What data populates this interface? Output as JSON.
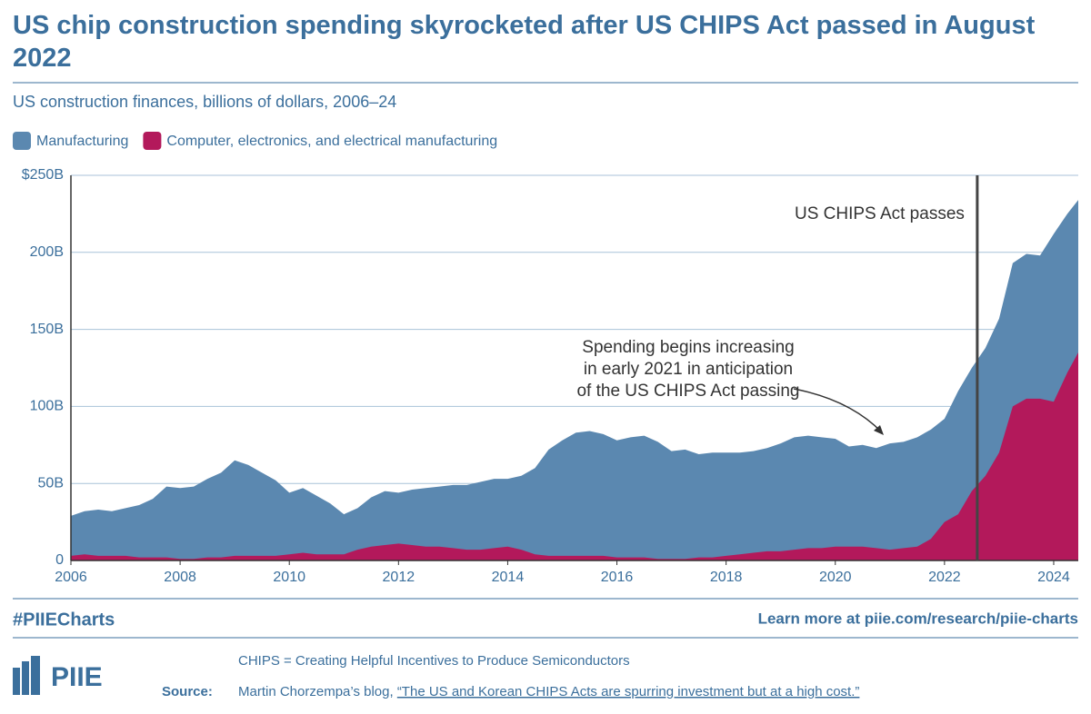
{
  "chart_data": {
    "type": "area",
    "title": "US chip construction spending skyrocketed after US CHIPS Act passed in August 2022",
    "subtitle": "US construction finances, billions of dollars, 2006–24",
    "x": [
      2006,
      2006.25,
      2006.5,
      2006.75,
      2007,
      2007.25,
      2007.5,
      2007.75,
      2008,
      2008.25,
      2008.5,
      2008.75,
      2009,
      2009.25,
      2009.5,
      2009.75,
      2010,
      2010.25,
      2010.5,
      2010.75,
      2011,
      2011.25,
      2011.5,
      2011.75,
      2012,
      2012.25,
      2012.5,
      2012.75,
      2013,
      2013.25,
      2013.5,
      2013.75,
      2014,
      2014.25,
      2014.5,
      2014.75,
      2015,
      2015.25,
      2015.5,
      2015.75,
      2016,
      2016.25,
      2016.5,
      2016.75,
      2017,
      2017.25,
      2017.5,
      2017.75,
      2018,
      2018.25,
      2018.5,
      2018.75,
      2019,
      2019.25,
      2019.5,
      2019.75,
      2020,
      2020.25,
      2020.5,
      2020.75,
      2021,
      2021.25,
      2021.5,
      2021.75,
      2022,
      2022.25,
      2022.5,
      2022.75,
      2023,
      2023.25,
      2023.5,
      2023.75,
      2024,
      2024.25,
      2024.45
    ],
    "series": [
      {
        "name": "Manufacturing",
        "color": "#5b88b0",
        "values": [
          29,
          32,
          33,
          32,
          34,
          36,
          40,
          48,
          47,
          48,
          53,
          57,
          65,
          62,
          57,
          52,
          44,
          47,
          42,
          37,
          30,
          34,
          41,
          45,
          44,
          46,
          47,
          48,
          49,
          49,
          51,
          53,
          53,
          55,
          60,
          72,
          78,
          83,
          84,
          82,
          78,
          80,
          81,
          77,
          71,
          72,
          69,
          70,
          70,
          70,
          71,
          73,
          76,
          80,
          81,
          80,
          79,
          74,
          75,
          73,
          76,
          77,
          80,
          85,
          92,
          110,
          125,
          138,
          157,
          193,
          199,
          198,
          212,
          225,
          234
        ]
      },
      {
        "name": "Computer, electronics, and electrical manufacturing",
        "color": "#b3195b",
        "values": [
          3,
          4,
          3,
          3,
          3,
          2,
          2,
          2,
          1,
          1,
          2,
          2,
          3,
          3,
          3,
          3,
          4,
          5,
          4,
          4,
          4,
          7,
          9,
          10,
          11,
          10,
          9,
          9,
          8,
          7,
          7,
          8,
          9,
          7,
          4,
          3,
          3,
          3,
          3,
          3,
          2,
          2,
          2,
          1,
          1,
          1,
          2,
          2,
          3,
          4,
          5,
          6,
          6,
          7,
          8,
          8,
          9,
          9,
          9,
          8,
          7,
          8,
          9,
          14,
          25,
          30,
          45,
          55,
          70,
          100,
          105,
          105,
          103,
          122,
          135
        ]
      }
    ],
    "xlim": [
      2006,
      2024.45
    ],
    "xticks": [
      2006,
      2008,
      2010,
      2012,
      2014,
      2016,
      2018,
      2020,
      2022,
      2024
    ],
    "ylim": [
      0,
      250
    ],
    "yticks": [
      0,
      {
        "value": 50,
        "label": "50B"
      },
      {
        "value": 100,
        "label": "100B"
      },
      {
        "value": 150,
        "label": "150B"
      },
      {
        "value": 200,
        "label": "200B"
      },
      {
        "value": 250,
        "label": "$250B"
      }
    ],
    "grid": true,
    "annotations": [
      {
        "lines": [
          "US CHIPS Act passes"
        ],
        "x": 2022.6
      },
      {
        "lines": [
          "Spending begins increasing",
          "in early 2021 in anticipation",
          "of the US CHIPS Act passing"
        ]
      }
    ]
  },
  "footer": {
    "hashtag": "#PIIECharts",
    "learn_more": "Learn more at piie.com/research/piie-charts",
    "note": "CHIPS = Creating Helpful Incentives to Produce Semiconductors",
    "source_label": "Source:",
    "source_text": "Martin Chorzempa’s blog, ",
    "source_link": "“The US and Korean CHIPS Acts are spurring investment but at a high cost.”",
    "logo": "PIIE"
  }
}
